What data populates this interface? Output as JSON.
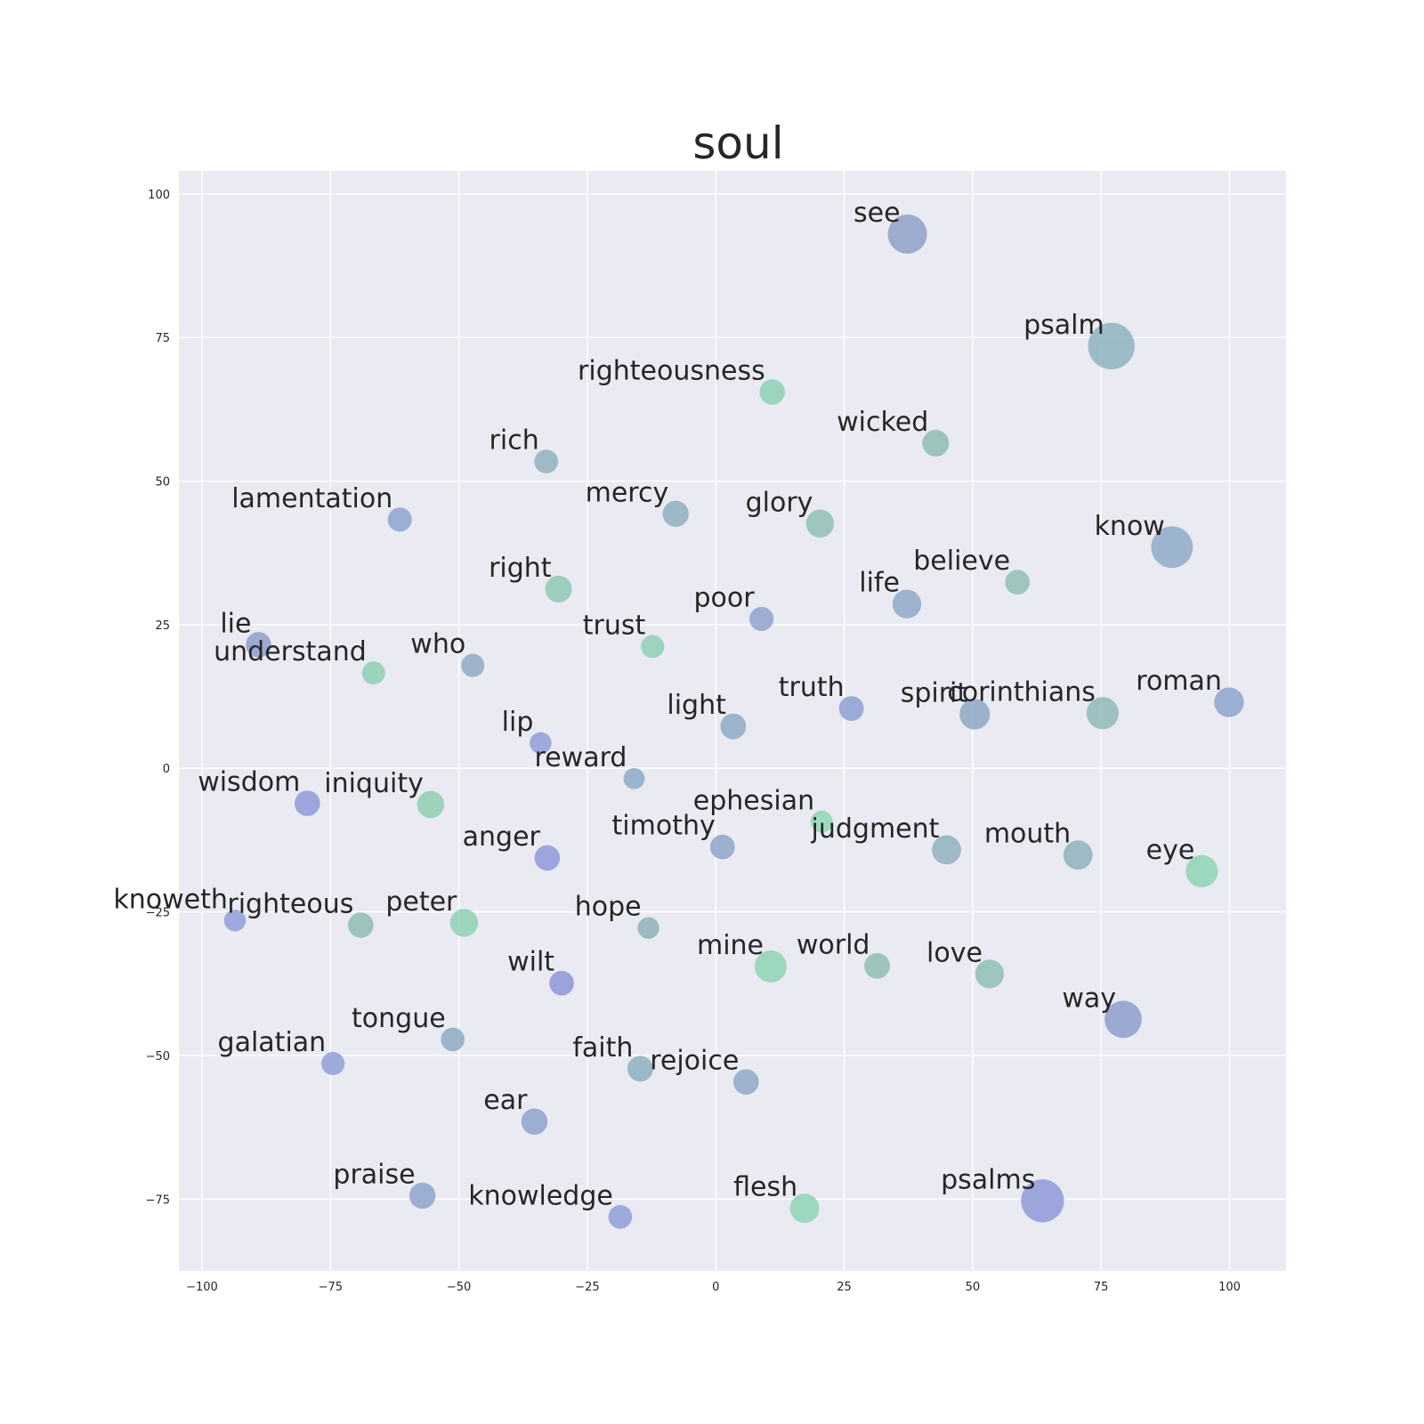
{
  "chart_data": {
    "type": "scatter",
    "title": "soul",
    "xlabel": "",
    "ylabel": "",
    "xlim": [
      -104.5,
      111
    ],
    "ylim": [
      -87.5,
      104
    ],
    "xticks": [
      -100,
      -75,
      -50,
      -25,
      0,
      25,
      50,
      75,
      100
    ],
    "yticks": [
      -75,
      -50,
      -25,
      0,
      25,
      50,
      75,
      100
    ],
    "xtick_labels": [
      "−100",
      "−75",
      "−50",
      "−25",
      "0",
      "25",
      "50",
      "75",
      "100"
    ],
    "ytick_labels": [
      "−75",
      "−50",
      "−25",
      "0",
      "25",
      "50",
      "75",
      "100"
    ],
    "grid": true,
    "colors": {
      "background": "#eaeaf2",
      "grid": "#ffffff",
      "text": "#262626"
    },
    "points": [
      {
        "label": "see",
        "x": 37.3,
        "y": 93.0,
        "size": 1.0,
        "color": "#8ea0c8"
      },
      {
        "label": "psalm",
        "x": 77.0,
        "y": 73.5,
        "size": 1.3,
        "color": "#8fb2c0"
      },
      {
        "label": "righteousness",
        "x": 11.0,
        "y": 65.5,
        "size": 0.45,
        "color": "#8fd0b4"
      },
      {
        "label": "wicked",
        "x": 42.8,
        "y": 56.6,
        "size": 0.5,
        "color": "#8fbdb3"
      },
      {
        "label": "rich",
        "x": -33.0,
        "y": 53.4,
        "size": 0.38,
        "color": "#8fb2bd"
      },
      {
        "label": "lamentation",
        "x": -61.5,
        "y": 43.3,
        "size": 0.4,
        "color": "#8ea3cf"
      },
      {
        "label": "mercy",
        "x": -7.8,
        "y": 44.3,
        "size": 0.48,
        "color": "#8fb0c0"
      },
      {
        "label": "glory",
        "x": 20.3,
        "y": 42.6,
        "size": 0.55,
        "color": "#8fc0b6"
      },
      {
        "label": "know",
        "x": 88.8,
        "y": 38.5,
        "size": 1.1,
        "color": "#8eaac8"
      },
      {
        "label": "right",
        "x": -30.6,
        "y": 31.2,
        "size": 0.5,
        "color": "#8fc8b4"
      },
      {
        "label": "believe",
        "x": 58.7,
        "y": 32.4,
        "size": 0.42,
        "color": "#8fc0b6"
      },
      {
        "label": "life",
        "x": 37.2,
        "y": 28.6,
        "size": 0.58,
        "color": "#8ea8c8"
      },
      {
        "label": "poor",
        "x": 8.9,
        "y": 26.0,
        "size": 0.4,
        "color": "#8ea3cf"
      },
      {
        "label": "lie",
        "x": -89.0,
        "y": 21.5,
        "size": 0.45,
        "color": "#8e9fcc"
      },
      {
        "label": "trust",
        "x": -12.3,
        "y": 21.2,
        "size": 0.36,
        "color": "#8fd0b4"
      },
      {
        "label": "understand",
        "x": -66.6,
        "y": 16.6,
        "size": 0.36,
        "color": "#8fcfb4"
      },
      {
        "label": "who",
        "x": -47.3,
        "y": 17.9,
        "size": 0.36,
        "color": "#8eaac4"
      },
      {
        "label": "truth",
        "x": 26.4,
        "y": 10.4,
        "size": 0.42,
        "color": "#8e9fd4"
      },
      {
        "label": "spirit",
        "x": 50.4,
        "y": 9.4,
        "size": 0.65,
        "color": "#8ea8c4"
      },
      {
        "label": "corinthians",
        "x": 75.3,
        "y": 9.6,
        "size": 0.72,
        "color": "#8fb8b8"
      },
      {
        "label": "roman",
        "x": 99.9,
        "y": 11.5,
        "size": 0.62,
        "color": "#8ea3cc"
      },
      {
        "label": "light",
        "x": 3.4,
        "y": 7.3,
        "size": 0.46,
        "color": "#8eaac4"
      },
      {
        "label": "lip",
        "x": -34.1,
        "y": 4.4,
        "size": 0.3,
        "color": "#8e9fd8"
      },
      {
        "label": "reward",
        "x": -15.9,
        "y": -1.8,
        "size": 0.28,
        "color": "#8eaac8"
      },
      {
        "label": "wisdom",
        "x": -79.5,
        "y": -6.1,
        "size": 0.45,
        "color": "#8e9ad8"
      },
      {
        "label": "iniquity",
        "x": -55.5,
        "y": -6.3,
        "size": 0.52,
        "color": "#8fcfb4"
      },
      {
        "label": "ephesian",
        "x": 20.6,
        "y": -9.3,
        "size": 0.32,
        "color": "#8fd8b4"
      },
      {
        "label": "timothy",
        "x": 1.3,
        "y": -13.7,
        "size": 0.42,
        "color": "#8ea5c8"
      },
      {
        "label": "judgment",
        "x": 44.9,
        "y": -14.2,
        "size": 0.6,
        "color": "#8fb2bd"
      },
      {
        "label": "mouth",
        "x": 70.5,
        "y": -15.1,
        "size": 0.6,
        "color": "#8fb2bd"
      },
      {
        "label": "anger",
        "x": -32.8,
        "y": -15.6,
        "size": 0.45,
        "color": "#8e9ad8"
      },
      {
        "label": "eye",
        "x": 94.6,
        "y": -17.9,
        "size": 0.72,
        "color": "#8fd4b4"
      },
      {
        "label": "knoweth",
        "x": -93.6,
        "y": -26.5,
        "size": 0.3,
        "color": "#8e9fd8"
      },
      {
        "label": "righteous",
        "x": -69.1,
        "y": -27.3,
        "size": 0.45,
        "color": "#8fbdb3"
      },
      {
        "label": "peter",
        "x": -49.0,
        "y": -26.9,
        "size": 0.55,
        "color": "#8fd0b4"
      },
      {
        "label": "hope",
        "x": -13.1,
        "y": -27.8,
        "size": 0.3,
        "color": "#8fb2b8"
      },
      {
        "label": "mine",
        "x": 10.7,
        "y": -34.5,
        "size": 0.72,
        "color": "#8fd4b4"
      },
      {
        "label": "world",
        "x": 31.4,
        "y": -34.4,
        "size": 0.46,
        "color": "#8fbdb3"
      },
      {
        "label": "love",
        "x": 53.3,
        "y": -35.8,
        "size": 0.58,
        "color": "#8fc0b6"
      },
      {
        "label": "wilt",
        "x": -30.0,
        "y": -37.4,
        "size": 0.42,
        "color": "#8e96d8"
      },
      {
        "label": "way",
        "x": 79.3,
        "y": -43.7,
        "size": 0.92,
        "color": "#8e9ecc"
      },
      {
        "label": "tongue",
        "x": -51.2,
        "y": -47.2,
        "size": 0.38,
        "color": "#8eaac4"
      },
      {
        "label": "galatian",
        "x": -74.5,
        "y": -51.4,
        "size": 0.36,
        "color": "#8e9fd8"
      },
      {
        "label": "faith",
        "x": -14.7,
        "y": -52.3,
        "size": 0.46,
        "color": "#8eb0c0"
      },
      {
        "label": "rejoice",
        "x": 5.9,
        "y": -54.6,
        "size": 0.45,
        "color": "#8ea8c8"
      },
      {
        "label": "ear",
        "x": -35.3,
        "y": -61.5,
        "size": 0.48,
        "color": "#8ea3cf"
      },
      {
        "label": "praise",
        "x": -57.1,
        "y": -74.4,
        "size": 0.48,
        "color": "#8ea3cf"
      },
      {
        "label": "knowledge",
        "x": -18.6,
        "y": -78.1,
        "size": 0.38,
        "color": "#8e9fd8"
      },
      {
        "label": "flesh",
        "x": 17.3,
        "y": -76.6,
        "size": 0.6,
        "color": "#8fd4b4"
      },
      {
        "label": "psalms",
        "x": 63.6,
        "y": -75.3,
        "size": 1.15,
        "color": "#8e9ad8"
      }
    ]
  }
}
